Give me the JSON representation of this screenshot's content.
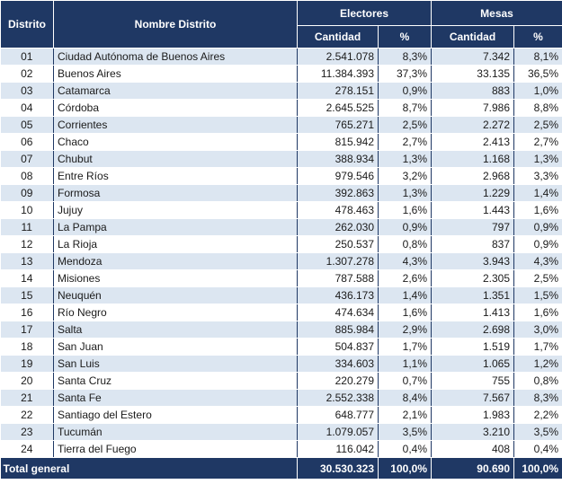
{
  "headers": {
    "distrito": "Distrito",
    "nombre": "Nombre  Distrito",
    "electores": "Electores",
    "mesas": "Mesas",
    "cantidad": "Cantidad",
    "pct": "%"
  },
  "rows": [
    {
      "code": "01",
      "name": "Ciudad Autónoma de Buenos Aires",
      "electores": "2.541.078",
      "electores_pct": "8,3%",
      "mesas": "7.342",
      "mesas_pct": "8,1%"
    },
    {
      "code": "02",
      "name": "Buenos Aires",
      "electores": "11.384.393",
      "electores_pct": "37,3%",
      "mesas": "33.135",
      "mesas_pct": "36,5%"
    },
    {
      "code": "03",
      "name": "Catamarca",
      "electores": "278.151",
      "electores_pct": "0,9%",
      "mesas": "883",
      "mesas_pct": "1,0%"
    },
    {
      "code": "04",
      "name": "Córdoba",
      "electores": "2.645.525",
      "electores_pct": "8,7%",
      "mesas": "7.986",
      "mesas_pct": "8,8%"
    },
    {
      "code": "05",
      "name": "Corrientes",
      "electores": "765.271",
      "electores_pct": "2,5%",
      "mesas": "2.272",
      "mesas_pct": "2,5%"
    },
    {
      "code": "06",
      "name": "Chaco",
      "electores": "815.942",
      "electores_pct": "2,7%",
      "mesas": "2.413",
      "mesas_pct": "2,7%"
    },
    {
      "code": "07",
      "name": "Chubut",
      "electores": "388.934",
      "electores_pct": "1,3%",
      "mesas": "1.168",
      "mesas_pct": "1,3%"
    },
    {
      "code": "08",
      "name": "Entre Ríos",
      "electores": "979.546",
      "electores_pct": "3,2%",
      "mesas": "2.968",
      "mesas_pct": "3,3%"
    },
    {
      "code": "09",
      "name": "Formosa",
      "electores": "392.863",
      "electores_pct": "1,3%",
      "mesas": "1.229",
      "mesas_pct": "1,4%"
    },
    {
      "code": "10",
      "name": "Jujuy",
      "electores": "478.463",
      "electores_pct": "1,6%",
      "mesas": "1.443",
      "mesas_pct": "1,6%"
    },
    {
      "code": "11",
      "name": "La Pampa",
      "electores": "262.030",
      "electores_pct": "0,9%",
      "mesas": "797",
      "mesas_pct": "0,9%"
    },
    {
      "code": "12",
      "name": "La Rioja",
      "electores": "250.537",
      "electores_pct": "0,8%",
      "mesas": "837",
      "mesas_pct": "0,9%"
    },
    {
      "code": "13",
      "name": "Mendoza",
      "electores": "1.307.278",
      "electores_pct": "4,3%",
      "mesas": "3.943",
      "mesas_pct": "4,3%"
    },
    {
      "code": "14",
      "name": "Misiones",
      "electores": "787.588",
      "electores_pct": "2,6%",
      "mesas": "2.305",
      "mesas_pct": "2,5%"
    },
    {
      "code": "15",
      "name": "Neuquén",
      "electores": "436.173",
      "electores_pct": "1,4%",
      "mesas": "1.351",
      "mesas_pct": "1,5%"
    },
    {
      "code": "16",
      "name": "Río Negro",
      "electores": "474.634",
      "electores_pct": "1,6%",
      "mesas": "1.413",
      "mesas_pct": "1,6%"
    },
    {
      "code": "17",
      "name": "Salta",
      "electores": "885.984",
      "electores_pct": "2,9%",
      "mesas": "2.698",
      "mesas_pct": "3,0%"
    },
    {
      "code": "18",
      "name": "San Juan",
      "electores": "504.837",
      "electores_pct": "1,7%",
      "mesas": "1.519",
      "mesas_pct": "1,7%"
    },
    {
      "code": "19",
      "name": "San Luis",
      "electores": "334.603",
      "electores_pct": "1,1%",
      "mesas": "1.065",
      "mesas_pct": "1,2%"
    },
    {
      "code": "20",
      "name": "Santa Cruz",
      "electores": "220.279",
      "electores_pct": "0,7%",
      "mesas": "755",
      "mesas_pct": "0,8%"
    },
    {
      "code": "21",
      "name": "Santa Fe",
      "electores": "2.552.338",
      "electores_pct": "8,4%",
      "mesas": "7.567",
      "mesas_pct": "8,3%"
    },
    {
      "code": "22",
      "name": "Santiago del Estero",
      "electores": "648.777",
      "electores_pct": "2,1%",
      "mesas": "1.983",
      "mesas_pct": "2,2%"
    },
    {
      "code": "23",
      "name": "Tucumán",
      "electores": "1.079.057",
      "electores_pct": "3,5%",
      "mesas": "3.210",
      "mesas_pct": "3,5%"
    },
    {
      "code": "24",
      "name": "Tierra del Fuego",
      "electores": "116.042",
      "electores_pct": "0,4%",
      "mesas": "408",
      "mesas_pct": "0,4%"
    }
  ],
  "total": {
    "label": "Total general",
    "electores": "30.530.323",
    "electores_pct": "100,0%",
    "mesas": "90.690",
    "mesas_pct": "100,0%"
  },
  "colors": {
    "header_bg": "#1f3864",
    "stripe": "#dce6f1"
  }
}
